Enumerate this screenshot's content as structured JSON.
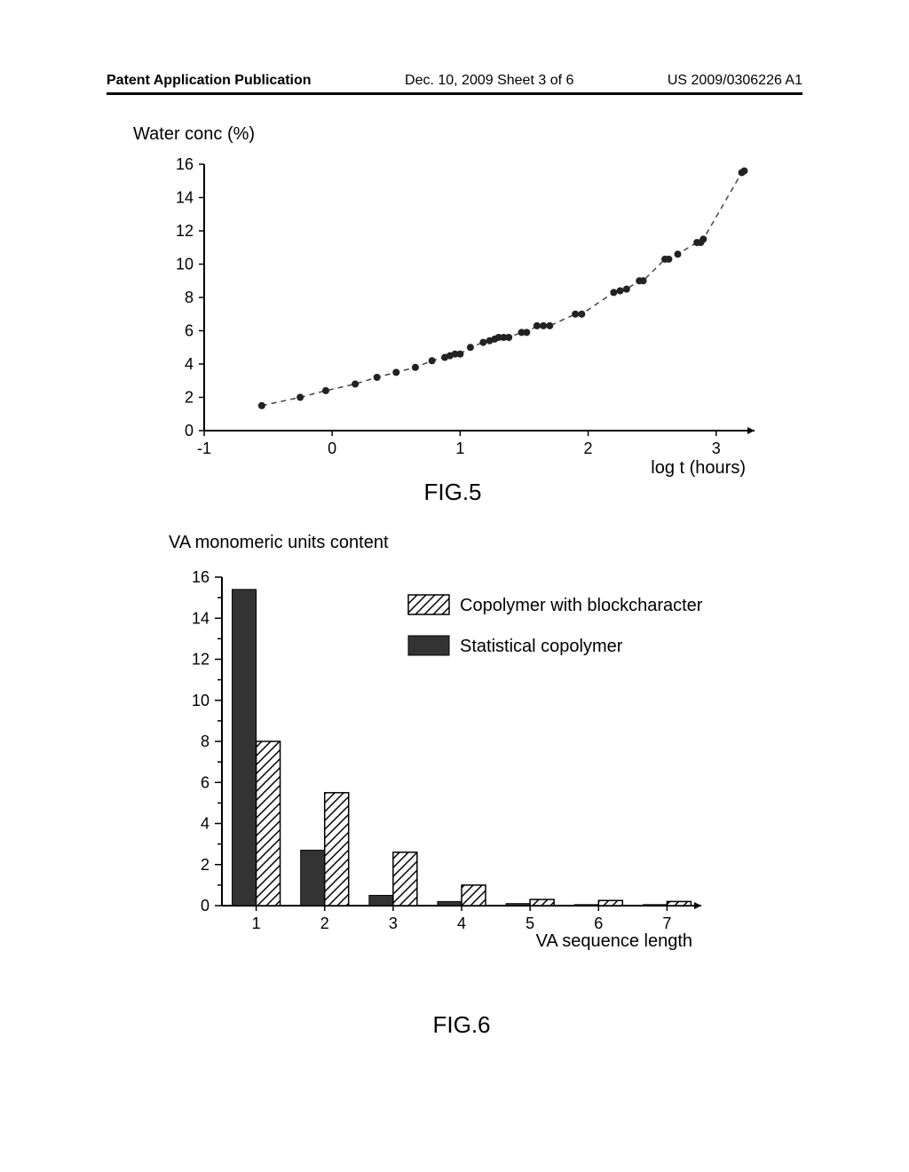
{
  "header": {
    "left": "Patent Application Publication",
    "center": "Dec. 10, 2009  Sheet 3 of 6",
    "right": "US 2009/0306226 A1"
  },
  "fig5": {
    "type": "scatter",
    "ylabel": "Water conc (%)",
    "xlabel": "log t (hours)",
    "caption": "FIG.5",
    "xlim": [
      -1,
      3.3
    ],
    "ylim": [
      0,
      16
    ],
    "xticks": [
      -1,
      0,
      1,
      2,
      3
    ],
    "yticks": [
      0,
      2,
      4,
      6,
      8,
      10,
      12,
      14,
      16
    ],
    "marker_color": "#222222",
    "marker_radius": 4,
    "trend_color": "#444444",
    "trend_dash": "6 5",
    "background_color": "#ffffff",
    "points": [
      [
        -0.55,
        1.5
      ],
      [
        -0.25,
        2.0
      ],
      [
        -0.05,
        2.4
      ],
      [
        0.18,
        2.8
      ],
      [
        0.35,
        3.2
      ],
      [
        0.5,
        3.5
      ],
      [
        0.65,
        3.8
      ],
      [
        0.78,
        4.2
      ],
      [
        0.88,
        4.4
      ],
      [
        0.92,
        4.5
      ],
      [
        0.96,
        4.6
      ],
      [
        1.0,
        4.6
      ],
      [
        1.08,
        5.0
      ],
      [
        1.18,
        5.3
      ],
      [
        1.23,
        5.4
      ],
      [
        1.27,
        5.5
      ],
      [
        1.3,
        5.6
      ],
      [
        1.34,
        5.6
      ],
      [
        1.38,
        5.6
      ],
      [
        1.48,
        5.9
      ],
      [
        1.52,
        5.9
      ],
      [
        1.6,
        6.3
      ],
      [
        1.65,
        6.3
      ],
      [
        1.7,
        6.3
      ],
      [
        1.9,
        7.0
      ],
      [
        1.95,
        7.0
      ],
      [
        2.2,
        8.3
      ],
      [
        2.25,
        8.4
      ],
      [
        2.3,
        8.5
      ],
      [
        2.4,
        9.0
      ],
      [
        2.43,
        9.0
      ],
      [
        2.6,
        10.3
      ],
      [
        2.63,
        10.3
      ],
      [
        2.7,
        10.6
      ],
      [
        2.85,
        11.3
      ],
      [
        2.88,
        11.3
      ],
      [
        2.9,
        11.5
      ],
      [
        3.2,
        15.5
      ],
      [
        3.22,
        15.6
      ]
    ]
  },
  "fig6": {
    "type": "bar",
    "title": "VA monomeric units content",
    "xlabel": "VA sequence length",
    "caption": "FIG.6",
    "xlim": [
      0.5,
      7.5
    ],
    "ylim": [
      0,
      16
    ],
    "xticks": [
      1,
      2,
      3,
      4,
      5,
      6,
      7
    ],
    "yticks": [
      0,
      2,
      4,
      6,
      8,
      10,
      12,
      14,
      16
    ],
    "bar_width": 0.35,
    "solid_color": "#333333",
    "hatch_stroke": "#000000",
    "background_color": "#ffffff",
    "legend": {
      "block": "Copolymer with blockcharacter",
      "stat": "Statistical copolymer"
    },
    "series": {
      "statistical": [
        15.4,
        2.7,
        0.5,
        0.2,
        0.1,
        0.05,
        0.05
      ],
      "block": [
        8.0,
        5.5,
        2.6,
        1.0,
        0.3,
        0.25,
        0.2
      ]
    }
  }
}
